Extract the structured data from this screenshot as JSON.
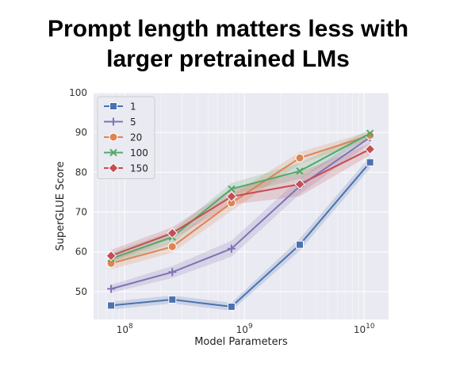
{
  "page": {
    "title_line1": "Prompt length matters less with",
    "title_line2": "larger pretrained LMs"
  },
  "chart_data": {
    "type": "line",
    "title": "Prompt length matters less with larger pretrained LMs",
    "xlabel": "Model Parameters",
    "ylabel": "SuperGLUE Score",
    "xscale": "log",
    "xlim": [
      55000000.0,
      16000000000.0
    ],
    "ylim": [
      43,
      100
    ],
    "x_ticks": [
      {
        "base": "10",
        "exp": "8",
        "value": 100000000.0
      },
      {
        "base": "10",
        "exp": "9",
        "value": 1000000000.0
      },
      {
        "base": "10",
        "exp": "10",
        "value": 10000000000.0
      }
    ],
    "y_ticks": [
      "50",
      "60",
      "70",
      "80",
      "90",
      "100"
    ],
    "grid": true,
    "legend_position": "top-left",
    "x": [
      77000000.0,
      250000000.0,
      780000000.0,
      2900000000.0,
      11200000000.0
    ],
    "series": [
      {
        "name": "1",
        "color": "#4c72b0",
        "marker": "square",
        "values": [
          46.5,
          48.0,
          46.2,
          61.8,
          82.5
        ],
        "band": [
          1.0,
          1.0,
          1.0,
          1.5,
          1.5
        ]
      },
      {
        "name": "5",
        "color": "#8172b3",
        "marker": "plus",
        "values": [
          50.7,
          54.9,
          60.8,
          76.5,
          88.8
        ],
        "band": [
          1.0,
          1.5,
          2.0,
          2.0,
          1.5
        ]
      },
      {
        "name": "20",
        "color": "#dd8452",
        "marker": "circle",
        "values": [
          57.1,
          61.3,
          72.3,
          83.6,
          89.3
        ],
        "band": [
          1.5,
          1.5,
          2.0,
          1.5,
          1.0
        ]
      },
      {
        "name": "100",
        "color": "#55a868",
        "marker": "x",
        "values": [
          58.3,
          63.7,
          75.8,
          80.3,
          89.8
        ],
        "band": [
          1.5,
          1.5,
          1.5,
          2.0,
          1.0
        ]
      },
      {
        "name": "150",
        "color": "#c44e52",
        "marker": "diamond",
        "values": [
          59.0,
          64.7,
          73.9,
          77.0,
          85.8
        ],
        "band": [
          1.5,
          1.5,
          2.0,
          3.0,
          1.5
        ]
      }
    ]
  }
}
